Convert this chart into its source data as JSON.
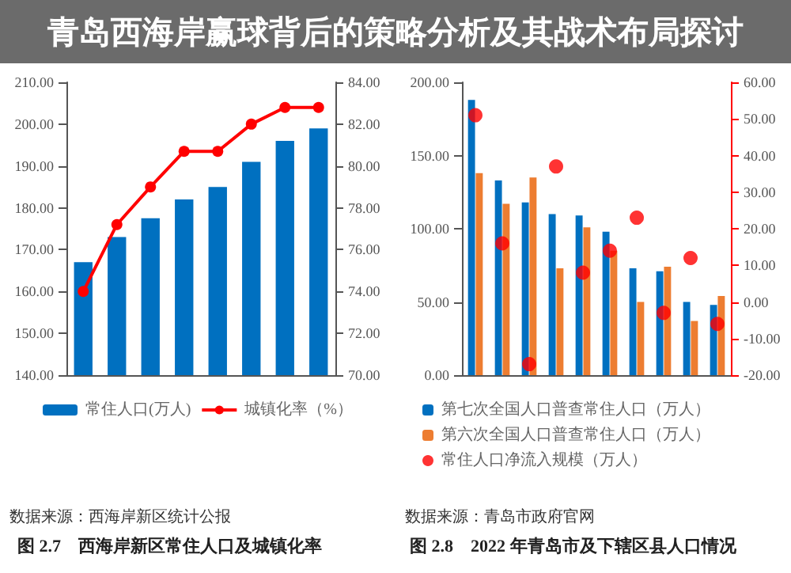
{
  "chart_data": [
    {
      "type": "bar",
      "title": "图 2.7　西海岸新区常住人口及城镇化率",
      "annotations": [
        "青岛西海岸赢球背后的策略分析及其战术布局探讨",
        "数据来源：西海岸新区统计公报"
      ],
      "categories": [
        null,
        null,
        null,
        null,
        null,
        null,
        null,
        null
      ],
      "series": [
        {
          "name": "常住人口(万人)",
          "color": "#0070c0",
          "values": [
            167,
            173,
            177.5,
            182,
            185,
            191,
            196,
            199
          ]
        },
        {
          "name": "城镇化率（%）",
          "type": "line",
          "axis": "y2",
          "color": "#ff0000",
          "marker": "circle",
          "values": [
            74,
            77.2,
            79,
            80.7,
            80.7,
            82,
            82.8,
            82.8
          ]
        }
      ],
      "ylim": [
        140,
        210
      ],
      "yticks": [
        {
          "value": 140,
          "label": "140.00"
        },
        {
          "value": 150,
          "label": "150.00"
        },
        {
          "value": 160,
          "label": "160.00"
        },
        {
          "value": 170,
          "label": "170.00"
        },
        {
          "value": 180,
          "label": "180.00"
        },
        {
          "value": 190,
          "label": "190.00"
        },
        {
          "value": 200,
          "label": "200.00"
        },
        {
          "value": 210,
          "label": "210.00"
        }
      ],
      "y2lim": [
        70,
        84
      ],
      "y2ticks": [
        {
          "value": 70,
          "label": "70.00"
        },
        {
          "value": 72,
          "label": "72.00"
        },
        {
          "value": 74,
          "label": "74.00"
        },
        {
          "value": 76,
          "label": "76.00"
        },
        {
          "value": 78,
          "label": "78.00"
        },
        {
          "value": 80,
          "label": "80.00"
        },
        {
          "value": 82,
          "label": "82.00"
        },
        {
          "value": 84,
          "label": "84.00"
        }
      ],
      "grid": false,
      "legend": "bottom",
      "tick_labels": "y"
    },
    {
      "type": "bar",
      "title": "图 2.8　2022 年青岛市及下辖区县人口情况",
      "annotations": [
        "数据来源：青岛市政府官网"
      ],
      "categories": [
        null,
        null,
        null,
        null,
        null,
        null,
        null,
        null,
        null,
        null
      ],
      "series": [
        {
          "name": "第七次全国人口普查常住人口（万人）",
          "color": "#0070c0",
          "values": [
            188,
            133,
            118,
            110,
            109,
            98,
            73,
            71,
            50,
            48
          ]
        },
        {
          "name": "第六次全国人口普查常住人口（万人）",
          "color": "#ed7d31",
          "values": [
            138,
            117,
            135,
            73,
            101,
            85,
            50,
            74,
            37,
            54
          ]
        },
        {
          "name": "常住人口净流入规模（万人）",
          "type": "scatter",
          "axis": "y2",
          "color": "#ff0000",
          "marker": "circle",
          "values": [
            51,
            16,
            -17,
            37,
            8,
            14,
            23,
            -3,
            12,
            -6
          ]
        }
      ],
      "ylim": [
        0,
        200
      ],
      "yticks": [
        {
          "value": 0,
          "label": "0.00"
        },
        {
          "value": 50,
          "label": "50.00"
        },
        {
          "value": 100,
          "label": "100.00"
        },
        {
          "value": 150,
          "label": "150.00"
        },
        {
          "value": 200,
          "label": "200.00"
        }
      ],
      "y2lim": [
        -20,
        60
      ],
      "y2ticks": [
        {
          "value": -20,
          "label": "-20.00"
        },
        {
          "value": -10,
          "label": "-10.00"
        },
        {
          "value": 0,
          "label": "0.00"
        },
        {
          "value": 10,
          "label": "10.00"
        },
        {
          "value": 20,
          "label": "20.00"
        },
        {
          "value": 30,
          "label": "30.00"
        },
        {
          "value": 40,
          "label": "40.00"
        },
        {
          "value": 50,
          "label": "50.00"
        },
        {
          "value": 60,
          "label": "60.00"
        }
      ],
      "grid": false,
      "legend": "bottom",
      "tick_labels": "y"
    }
  ]
}
